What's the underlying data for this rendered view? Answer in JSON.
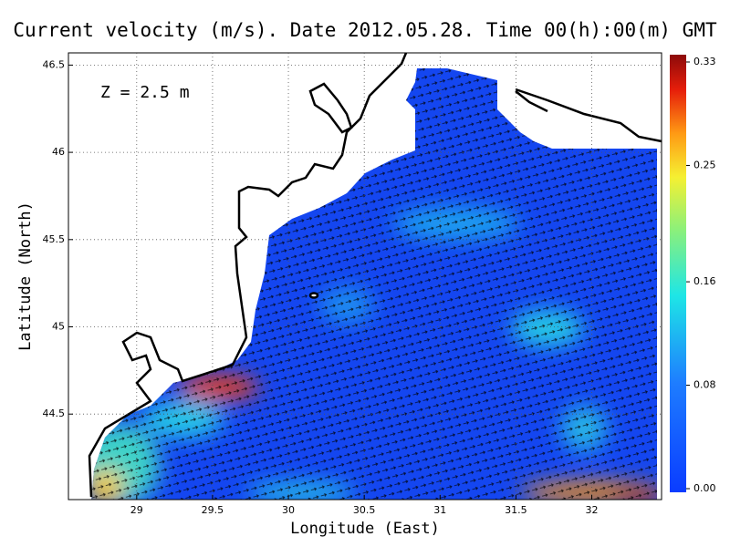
{
  "chart_data": {
    "type": "map",
    "title": "Current velocity (m/s). Date 2012.05.28. Time 00(h):00(m) GMT",
    "annotation": "Z = 2.5 m",
    "x_label": "Longitude (East)",
    "y_label": "Latitude (North)",
    "xlim": [
      28.55,
      32.46
    ],
    "ylim": [
      44.01,
      46.57
    ],
    "xticks": [
      29,
      29.5,
      30,
      30.5,
      31,
      31.5,
      32
    ],
    "yticks": [
      44.5,
      45,
      45.5,
      46,
      46.5
    ],
    "grid": true,
    "colorbar": {
      "lim": [
        0,
        0.33
      ],
      "ticks": [
        {
          "value": 0,
          "label": "0.00"
        },
        0.08,
        0.16,
        0.25,
        0.33
      ]
    }
  }
}
